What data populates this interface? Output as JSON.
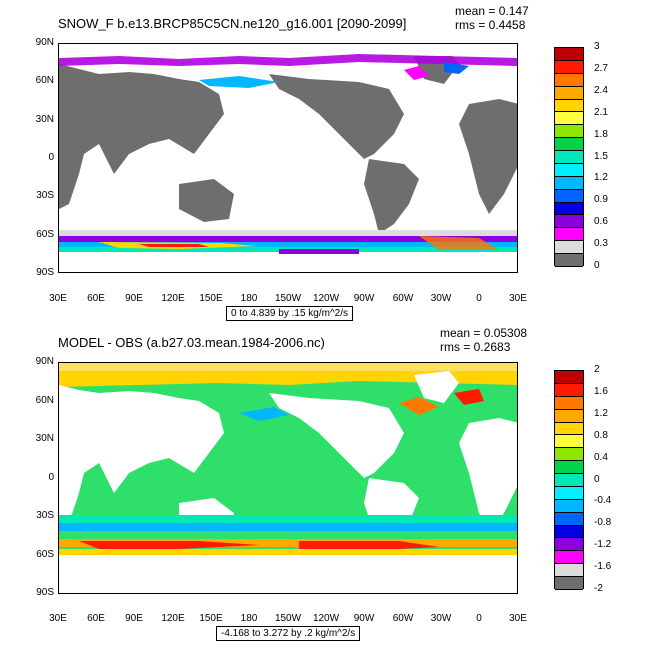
{
  "panels": [
    {
      "title": "SNOW_F b.e13.BRCP85C5CN.ne120_g16.001 [2090-2099]",
      "mean": "mean = 0.147",
      "rms": "rms = 0.4458",
      "range": "0 to 4.839 by .15 kg/m^2/s",
      "lat_labels": [
        "90N",
        "60N",
        "30N",
        "0",
        "30S",
        "60S",
        "90S"
      ],
      "lon_labels": [
        "30E",
        "60E",
        "90E",
        "120E",
        "150E",
        "180",
        "150W",
        "120W",
        "90W",
        "60W",
        "30W",
        "0",
        "30E"
      ],
      "colorbar_labels": [
        "3",
        "2.7",
        "2.4",
        "2.1",
        "1.8",
        "1.5",
        "1.2",
        "0.9",
        "0.6",
        "0.3",
        "0"
      ],
      "colorbar_colors": [
        "#c00000",
        "#ff1a00",
        "#ff7800",
        "#ffa800",
        "#ffd400",
        "#ffff40",
        "#8ce600",
        "#00d24a",
        "#00e8b8",
        "#00f0ff",
        "#00b8ff",
        "#0064ff",
        "#0000e0",
        "#8c00e0",
        "#ff00ff",
        "#dcdcdc",
        "#6e6e6e"
      ],
      "land_color": "#6e6e6e",
      "ocean_color": "#ffffff"
    },
    {
      "title": "MODEL - OBS (a.b27.03.mean.1984-2006.nc)",
      "mean": "mean = 0.05308",
      "rms": "rms = 0.2683",
      "range": "-4.168 to 3.272 by .2 kg/m^2/s",
      "lat_labels": [
        "90N",
        "60N",
        "30N",
        "0",
        "30S",
        "60S",
        "90S"
      ],
      "lon_labels": [
        "30E",
        "60E",
        "90E",
        "120E",
        "150E",
        "180",
        "150W",
        "120W",
        "90W",
        "60W",
        "30W",
        "0",
        "30E"
      ],
      "colorbar_labels": [
        "2",
        "1.6",
        "1.2",
        "0.8",
        "0.4",
        "0",
        "-0.4",
        "-0.8",
        "-1.2",
        "-1.6",
        "-2"
      ],
      "colorbar_colors": [
        "#c00000",
        "#ff1a00",
        "#ff7800",
        "#ffa800",
        "#ffd400",
        "#ffff40",
        "#8ce600",
        "#00d24a",
        "#00e8b8",
        "#00f0ff",
        "#00b8ff",
        "#0064ff",
        "#0000e0",
        "#8c00e0",
        "#ff00ff",
        "#dcdcdc",
        "#6e6e6e"
      ],
      "land_color": "#ffffff",
      "ocean_color": "#2ee06a"
    }
  ]
}
